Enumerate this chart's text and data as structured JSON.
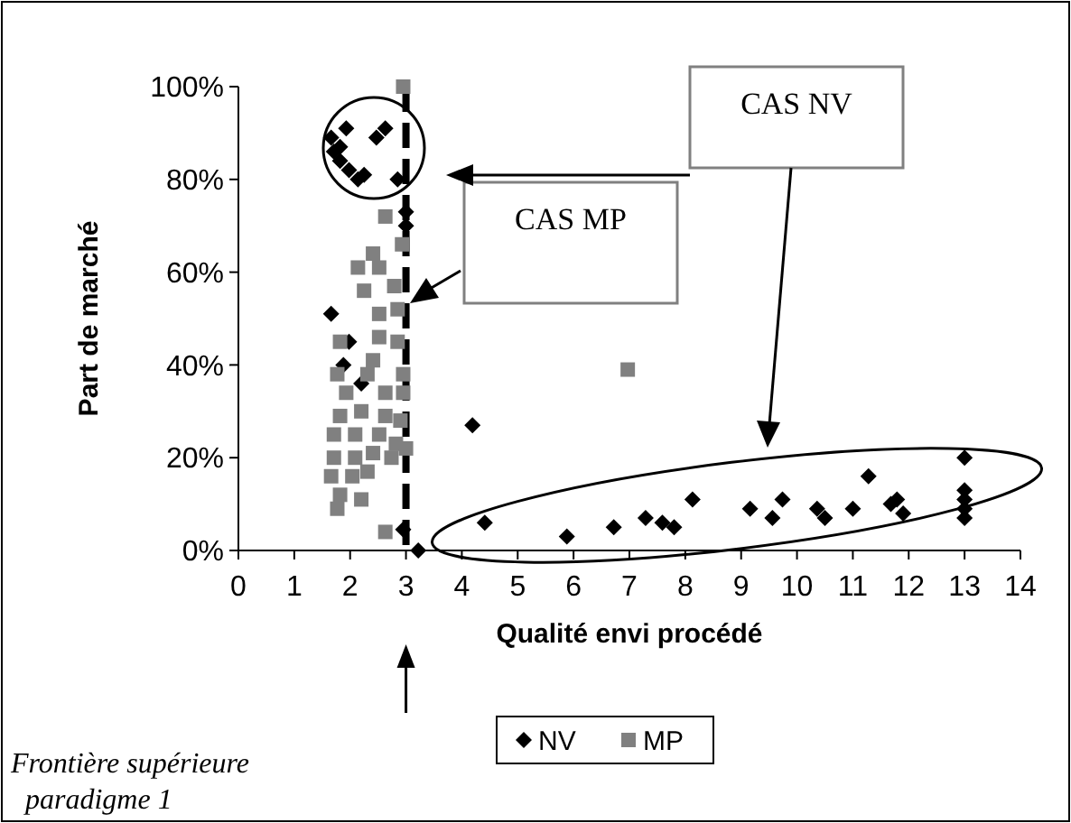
{
  "chart_data": {
    "type": "scatter",
    "xlabel": "Qualité envi procédé",
    "ylabel": "Part de marché",
    "xlim": [
      0,
      14
    ],
    "xticks": [
      0,
      1,
      2,
      3,
      4,
      5,
      6,
      7,
      8,
      9,
      10,
      11,
      12,
      13,
      14
    ],
    "ylim": [
      0,
      100
    ],
    "yticks": [
      {
        "value": 0,
        "label": "0%"
      },
      {
        "value": 20,
        "label": "20%"
      },
      {
        "value": 40,
        "label": "40%"
      },
      {
        "value": 60,
        "label": "60%"
      },
      {
        "value": 80,
        "label": "80%"
      },
      {
        "value": 100,
        "label": "100%"
      }
    ],
    "grid": false,
    "legend": "bottom",
    "annotations": [
      "CAS NV",
      "CAS MP",
      "Frontière supérieure paradigme 1"
    ],
    "ref_lines": [
      {
        "axis": "x",
        "value": 3,
        "color": "#000000",
        "line_style": "dashed"
      }
    ],
    "series": [
      {
        "name": "NV",
        "color": "#000000",
        "marker": "diamond",
        "x": [
          1.93,
          1.66,
          1.71,
          1.82,
          1.98,
          2.14,
          2.47,
          2.63,
          2.85,
          2.25,
          1.82,
          3.0,
          3.0,
          1.66,
          1.98,
          1.88,
          2.2,
          4.19,
          2.95,
          3.22,
          4.41,
          5.88,
          6.72,
          7.29,
          7.59,
          7.8,
          8.13,
          9.16,
          9.56,
          9.74,
          10.36,
          10.5,
          11.0,
          11.28,
          11.68,
          11.79,
          11.9,
          13,
          13,
          13,
          13,
          13
        ],
        "values": [
          91,
          89,
          86,
          84,
          82,
          80,
          89,
          91,
          80,
          81,
          87,
          73,
          70,
          51,
          45,
          40,
          36,
          27,
          4.5,
          0,
          6,
          3,
          5,
          7,
          6,
          5,
          11,
          9,
          7,
          11,
          9,
          7,
          9,
          16,
          10,
          11,
          8,
          20,
          13,
          11,
          9,
          7
        ]
      },
      {
        "name": "MP",
        "color": "#808080",
        "marker": "square",
        "x": [
          2.95,
          2.63,
          2.93,
          2.41,
          2.14,
          2.52,
          2.25,
          2.79,
          2.52,
          2.85,
          1.82,
          2.52,
          2.85,
          2.41,
          1.77,
          2.31,
          2.95,
          1.93,
          2.63,
          2.95,
          1.82,
          2.2,
          2.63,
          2.9,
          1.71,
          2.09,
          2.52,
          2.82,
          1.71,
          2.09,
          2.41,
          2.74,
          3.0,
          1.66,
          2.04,
          2.31,
          1.82,
          2.2,
          1.77,
          2.63,
          6.97
        ],
        "values": [
          100,
          72,
          66,
          64,
          61,
          61,
          56,
          57,
          51,
          52,
          45,
          46,
          45,
          41,
          38,
          38,
          38,
          34,
          34,
          34,
          29,
          30,
          29,
          28,
          25,
          25,
          25,
          23,
          20,
          20,
          21,
          20,
          22,
          16,
          16,
          17,
          12,
          11,
          9,
          4,
          39
        ]
      }
    ]
  }
}
